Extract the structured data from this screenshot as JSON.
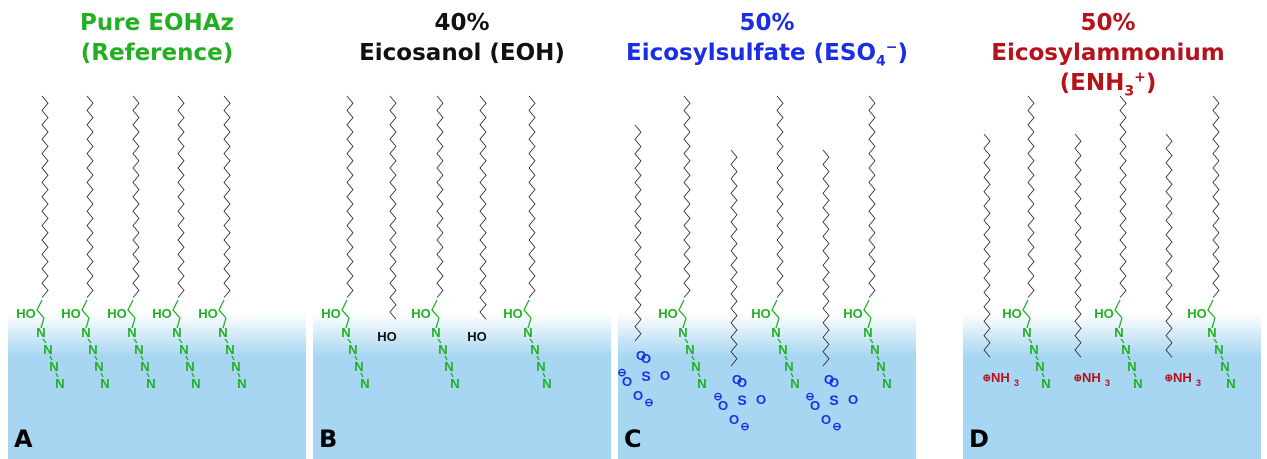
{
  "colors": {
    "eohaz": "#22b022",
    "eoh": "#111111",
    "eso4": "#1a2ee6",
    "enh3": "#b5121b",
    "water_top": "#ffffff",
    "water_bottom": "#a7d6f2"
  },
  "panels": [
    {
      "id": "A",
      "label": "A",
      "title_line1": "Pure EOHAz",
      "title_line2": "(Reference)",
      "title_color": "#22b022",
      "molecule_labels": {
        "hydroxyl": "HO",
        "azide_n": "N"
      }
    },
    {
      "id": "B",
      "label": "B",
      "title_line1": "40%",
      "title_line2": "Eicosanol (EOH)",
      "title_color": "#111111",
      "molecule_labels": {
        "hydroxyl": "HO",
        "azide_n": "N",
        "eoh_head": "HO"
      }
    },
    {
      "id": "C",
      "label": "C",
      "title_line1": "50%",
      "title_line2_pre": "Eicosylsulfate (ESO",
      "title_line2_sub": "4",
      "title_line2_sup": "−",
      "title_line2_post": ")",
      "title_color": "#1a2ee6",
      "molecule_labels": {
        "hydroxyl": "HO",
        "azide_n": "N",
        "oxygen": "O",
        "sulfur": "S",
        "minus": "⊖"
      }
    },
    {
      "id": "D",
      "label": "D",
      "title_line1": "50%",
      "title_line2_pre": "Eicosylammonium (ENH",
      "title_line2_sub": "3",
      "title_line2_sup": "+",
      "title_line2_post": ")",
      "title_color": "#b5121b",
      "molecule_labels": {
        "hydroxyl": "HO",
        "azide_n": "N",
        "ammonium": "NH",
        "ammonium_sub": "3",
        "plus": "⊕"
      }
    }
  ]
}
